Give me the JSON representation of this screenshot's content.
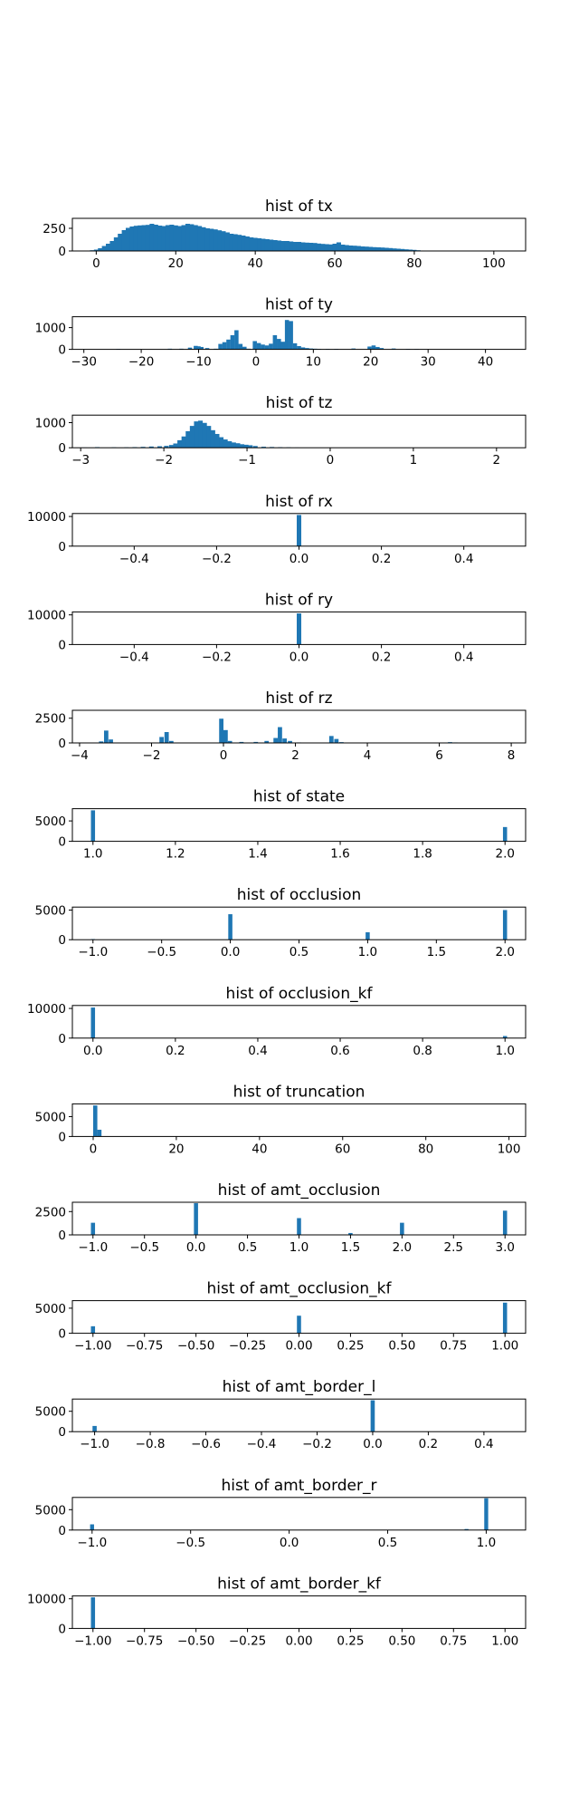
{
  "figure": {
    "background": "#ffffff"
  },
  "colors": {
    "bar": "#1f77b4",
    "axes": "#000000"
  },
  "chart_data": [
    {
      "type": "bar",
      "title": "hist of tx",
      "xlim": [
        -6,
        108
      ],
      "ylim": [
        0,
        360
      ],
      "xticks": [
        0,
        20,
        40,
        60,
        80,
        100
      ],
      "yticks": [
        0,
        250
      ],
      "bar_width": 1.15,
      "x": [
        -2,
        -1,
        0,
        1,
        2,
        3,
        4,
        5,
        6,
        7,
        8,
        9,
        10,
        11,
        12,
        13,
        14,
        15,
        16,
        17,
        18,
        19,
        20,
        21,
        22,
        23,
        24,
        25,
        26,
        27,
        28,
        29,
        30,
        31,
        32,
        33,
        34,
        35,
        36,
        37,
        38,
        39,
        40,
        41,
        42,
        43,
        44,
        45,
        46,
        47,
        48,
        49,
        50,
        51,
        52,
        53,
        54,
        55,
        56,
        57,
        58,
        59,
        60,
        61,
        62,
        63,
        64,
        65,
        66,
        67,
        68,
        69,
        70,
        71,
        72,
        73,
        74,
        75,
        76,
        77,
        78,
        79,
        80,
        81,
        82,
        84,
        86
      ],
      "values": [
        3,
        8,
        15,
        30,
        55,
        80,
        110,
        150,
        190,
        230,
        255,
        270,
        278,
        282,
        285,
        288,
        300,
        290,
        280,
        275,
        285,
        290,
        282,
        275,
        285,
        300,
        295,
        285,
        275,
        262,
        250,
        245,
        238,
        228,
        218,
        205,
        190,
        185,
        178,
        170,
        160,
        150,
        145,
        140,
        135,
        130,
        125,
        120,
        115,
        110,
        110,
        105,
        100,
        100,
        95,
        92,
        90,
        88,
        82,
        78,
        75,
        72,
        80,
        95,
        70,
        65,
        60,
        58,
        55,
        50,
        48,
        45,
        42,
        40,
        38,
        35,
        32,
        28,
        25,
        22,
        18,
        15,
        12,
        8,
        5,
        3,
        2
      ]
    },
    {
      "type": "bar",
      "title": "hist of ty",
      "xlim": [
        -32,
        47
      ],
      "ylim": [
        0,
        1500
      ],
      "xticks": [
        -30,
        -20,
        -10,
        0,
        10,
        20,
        30,
        40
      ],
      "yticks": [
        0,
        1000
      ],
      "bar_width": 0.72,
      "x": [
        -24,
        -15,
        -13,
        -11.5,
        -10.5,
        -10,
        -9.5,
        -8.5,
        -7,
        -6.2,
        -5.5,
        -4.8,
        -4.1,
        -3.4,
        -2.7,
        -2,
        -1.3,
        -0.2,
        0.5,
        1.2,
        1.9,
        2.6,
        3.3,
        4,
        4.7,
        5.4,
        6.1,
        6.8,
        7.5,
        8.2,
        8.9,
        9.6,
        10.3,
        11,
        12.5,
        14,
        17,
        19.8,
        20.5,
        21.2,
        21.9,
        24,
        26.5,
        28
      ],
      "values": [
        20,
        30,
        30,
        80,
        160,
        140,
        110,
        60,
        30,
        250,
        330,
        450,
        650,
        880,
        250,
        120,
        30,
        380,
        290,
        220,
        180,
        260,
        650,
        480,
        350,
        1350,
        1300,
        280,
        150,
        90,
        60,
        40,
        30,
        20,
        20,
        20,
        40,
        130,
        180,
        110,
        60,
        40,
        20,
        15
      ]
    },
    {
      "type": "bar",
      "title": "hist of tz",
      "xlim": [
        -3.1,
        2.35
      ],
      "ylim": [
        0,
        1300
      ],
      "xticks": [
        -3,
        -2,
        -1,
        0,
        1,
        2
      ],
      "yticks": [
        0,
        1000
      ],
      "bar_width": 0.055,
      "x": [
        -2.95,
        -2.8,
        -2.6,
        -2.45,
        -2.35,
        -2.25,
        -2.15,
        -2.05,
        -1.97,
        -1.91,
        -1.86,
        -1.81,
        -1.76,
        -1.71,
        -1.66,
        -1.61,
        -1.56,
        -1.51,
        -1.46,
        -1.41,
        -1.36,
        -1.31,
        -1.26,
        -1.21,
        -1.16,
        -1.11,
        -1.06,
        -1.01,
        -0.96,
        -0.9,
        -0.8,
        -0.7,
        -0.6,
        -0.5,
        -0.4,
        -0.3,
        -0.2,
        -0.1
      ],
      "values": [
        10,
        25,
        15,
        15,
        25,
        35,
        50,
        60,
        75,
        110,
        170,
        300,
        450,
        660,
        870,
        1050,
        1080,
        990,
        870,
        700,
        550,
        420,
        330,
        260,
        210,
        180,
        140,
        120,
        100,
        70,
        40,
        30,
        20,
        15,
        10,
        8,
        5,
        5
      ]
    },
    {
      "type": "bar",
      "title": "hist of rx",
      "xlim": [
        -0.55,
        0.55
      ],
      "ylim": [
        0,
        11000
      ],
      "xticks": [
        -0.4,
        -0.2,
        0.0,
        0.2,
        0.4
      ],
      "yticks": [
        0,
        10000
      ],
      "bar_width": 0.011,
      "x": [
        0.0
      ],
      "values": [
        10500
      ]
    },
    {
      "type": "bar",
      "title": "hist of ry",
      "xlim": [
        -0.55,
        0.55
      ],
      "ylim": [
        0,
        11000
      ],
      "xticks": [
        -0.4,
        -0.2,
        0.0,
        0.2,
        0.4
      ],
      "yticks": [
        0,
        10000
      ],
      "bar_width": 0.011,
      "x": [
        0.0
      ],
      "values": [
        10500
      ]
    },
    {
      "type": "bar",
      "title": "hist of rz",
      "xlim": [
        -4.2,
        8.4
      ],
      "ylim": [
        0,
        3300
      ],
      "xticks": [
        -4,
        -2,
        0,
        2,
        4,
        6,
        8
      ],
      "yticks": [
        0,
        2500
      ],
      "bar_width": 0.12,
      "x": [
        -3.4,
        -3.26,
        -3.13,
        -1.72,
        -1.58,
        -1.45,
        -0.06,
        0.06,
        0.18,
        0.5,
        0.9,
        1.2,
        1.45,
        1.57,
        1.7,
        1.85,
        2.1,
        3.0,
        3.14,
        3.28,
        6.3,
        6.45
      ],
      "values": [
        150,
        1250,
        350,
        600,
        1100,
        200,
        2450,
        1300,
        200,
        100,
        100,
        200,
        500,
        1600,
        450,
        200,
        50,
        700,
        400,
        80,
        80,
        50
      ]
    },
    {
      "type": "bar",
      "title": "hist of state",
      "xlim": [
        0.95,
        2.05
      ],
      "ylim": [
        0,
        8000
      ],
      "xticks": [
        1.0,
        1.2,
        1.4,
        1.6,
        1.8,
        2.0
      ],
      "yticks": [
        0,
        5000
      ],
      "bar_width": 0.01,
      "x": [
        1.0,
        2.0
      ],
      "values": [
        7600,
        3500
      ]
    },
    {
      "type": "bar",
      "title": "hist of occlusion",
      "xlim": [
        -1.15,
        2.15
      ],
      "ylim": [
        0,
        5500
      ],
      "xticks": [
        -1.0,
        -0.5,
        0.0,
        0.5,
        1.0,
        1.5,
        2.0
      ],
      "yticks": [
        0,
        5000
      ],
      "bar_width": 0.03,
      "x": [
        -1.0,
        0.0,
        1.0,
        2.0
      ],
      "values": [
        100,
        4300,
        1250,
        5000
      ]
    },
    {
      "type": "bar",
      "title": "hist of occlusion_kf",
      "xlim": [
        -0.05,
        1.05
      ],
      "ylim": [
        0,
        11000
      ],
      "xticks": [
        0.0,
        0.2,
        0.4,
        0.6,
        0.8,
        1.0
      ],
      "yticks": [
        0,
        10000
      ],
      "bar_width": 0.01,
      "x": [
        0.0,
        1.0
      ],
      "values": [
        10300,
        700
      ]
    },
    {
      "type": "bar",
      "title": "hist of truncation",
      "xlim": [
        -5,
        104
      ],
      "ylim": [
        0,
        8200
      ],
      "xticks": [
        0,
        20,
        40,
        60,
        80,
        100
      ],
      "yticks": [
        0,
        5000
      ],
      "bar_width": 1.0,
      "x": [
        0.5,
        1.5,
        99.5
      ],
      "values": [
        7800,
        1700,
        50
      ]
    },
    {
      "type": "bar",
      "title": "hist of amt_occlusion",
      "xlim": [
        -1.2,
        3.2
      ],
      "ylim": [
        0,
        3500
      ],
      "xticks": [
        -1.0,
        -0.5,
        0.0,
        0.5,
        1.0,
        1.5,
        2.0,
        2.5,
        3.0
      ],
      "yticks": [
        0,
        2500
      ],
      "bar_width": 0.04,
      "x": [
        -1.0,
        0.0,
        1.0,
        1.5,
        2.0,
        3.0
      ],
      "values": [
        1300,
        3400,
        1800,
        200,
        1300,
        2600
      ]
    },
    {
      "type": "bar",
      "title": "hist of amt_occlusion_kf",
      "xlim": [
        -1.1,
        1.1
      ],
      "ylim": [
        0,
        6500
      ],
      "xticks": [
        -1.0,
        -0.75,
        -0.5,
        -0.25,
        0.0,
        0.25,
        0.5,
        0.75,
        1.0
      ],
      "yticks": [
        0,
        5000
      ],
      "bar_width": 0.02,
      "x": [
        -1.0,
        0.0,
        1.0
      ],
      "values": [
        1400,
        3500,
        6100
      ]
    },
    {
      "type": "bar",
      "title": "hist of amt_border_l",
      "xlim": [
        -1.08,
        0.55
      ],
      "ylim": [
        0,
        8000
      ],
      "xticks": [
        -1.0,
        -0.8,
        -0.6,
        -0.4,
        -0.2,
        0.0,
        0.2,
        0.4
      ],
      "yticks": [
        0,
        5000
      ],
      "bar_width": 0.015,
      "x": [
        -1.0,
        0.0
      ],
      "values": [
        1400,
        7700
      ]
    },
    {
      "type": "bar",
      "title": "hist of amt_border_r",
      "xlim": [
        -1.1,
        1.2
      ],
      "ylim": [
        0,
        8000
      ],
      "xticks": [
        -1.0,
        -0.5,
        0.0,
        0.5,
        1.0
      ],
      "yticks": [
        0,
        5000
      ],
      "bar_width": 0.02,
      "x": [
        -1.0,
        0.9,
        1.0
      ],
      "values": [
        1400,
        250,
        7800
      ]
    },
    {
      "type": "bar",
      "title": "hist of amt_border_kf",
      "xlim": [
        -1.1,
        1.1
      ],
      "ylim": [
        0,
        11000
      ],
      "xticks": [
        -1.0,
        -0.75,
        -0.5,
        -0.25,
        0.0,
        0.25,
        0.5,
        0.75,
        1.0
      ],
      "yticks": [
        0,
        10000
      ],
      "bar_width": 0.02,
      "x": [
        -1.0
      ],
      "values": [
        10500
      ]
    }
  ]
}
